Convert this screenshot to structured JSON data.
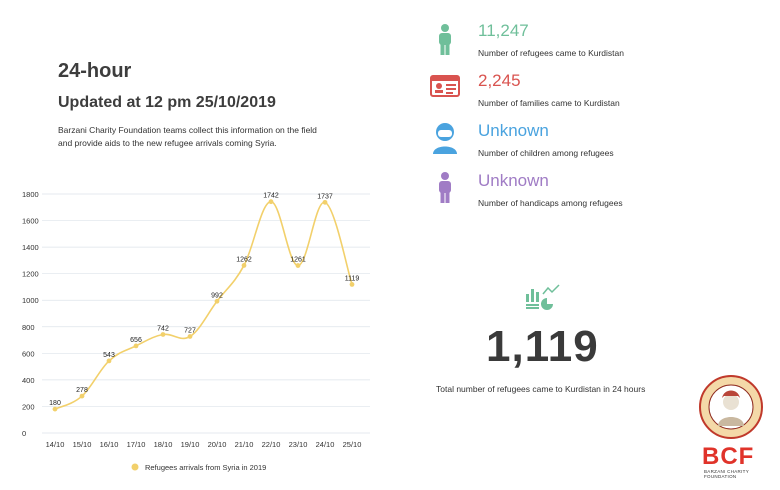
{
  "header": {
    "title": "24-hour",
    "updated": "Updated at 12 pm 25/10/2019",
    "description": "Barzani Charity Foundation teams collect this information on the field and provide aids to the new refugee arrivals coming Syria."
  },
  "stats": [
    {
      "value": "11,247",
      "label": "Number of refugees came to Kurdistan",
      "color": "#6fbf9a",
      "icon": "person-icon"
    },
    {
      "value": "2,245",
      "label": "Number of families came to Kurdistan",
      "color": "#d9534f",
      "icon": "id-card-icon"
    },
    {
      "value": "Unknown",
      "label": "Number of children among refugees",
      "color": "#4aa3df",
      "icon": "child-icon"
    },
    {
      "value": "Unknown",
      "label": "Number of handicaps among refugees",
      "color": "#a07cc5",
      "icon": "person-icon"
    }
  ],
  "summary": {
    "value": "1,119",
    "caption": "Total number of refugees came to Kurdistan in 24 hours",
    "icon": "chart-icon",
    "icon_color": "#6fbf9a"
  },
  "brand": {
    "logo_text": "BCF",
    "logo_subtext": "BARZANI CHARITY FOUNDATION",
    "logo_color": "#e0332a"
  },
  "chart_data": {
    "type": "line",
    "categories": [
      "14/10",
      "15/10",
      "16/10",
      "17/10",
      "18/10",
      "19/10",
      "20/10",
      "21/10",
      "22/10",
      "23/10",
      "24/10",
      "25/10"
    ],
    "series": [
      {
        "name": "Refugees arrivals from Syria in 2019",
        "values": [
          180,
          278,
          543,
          656,
          742,
          727,
          992,
          1262,
          1742,
          1261,
          1737,
          1119
        ],
        "color": "#f2d06b"
      }
    ],
    "ylim": [
      0,
      1800
    ],
    "yticks": [
      0,
      200,
      400,
      600,
      800,
      1000,
      1200,
      1400,
      1600,
      1800
    ],
    "grid": true,
    "legend": "bottom",
    "title": "",
    "xlabel": "",
    "ylabel": ""
  }
}
